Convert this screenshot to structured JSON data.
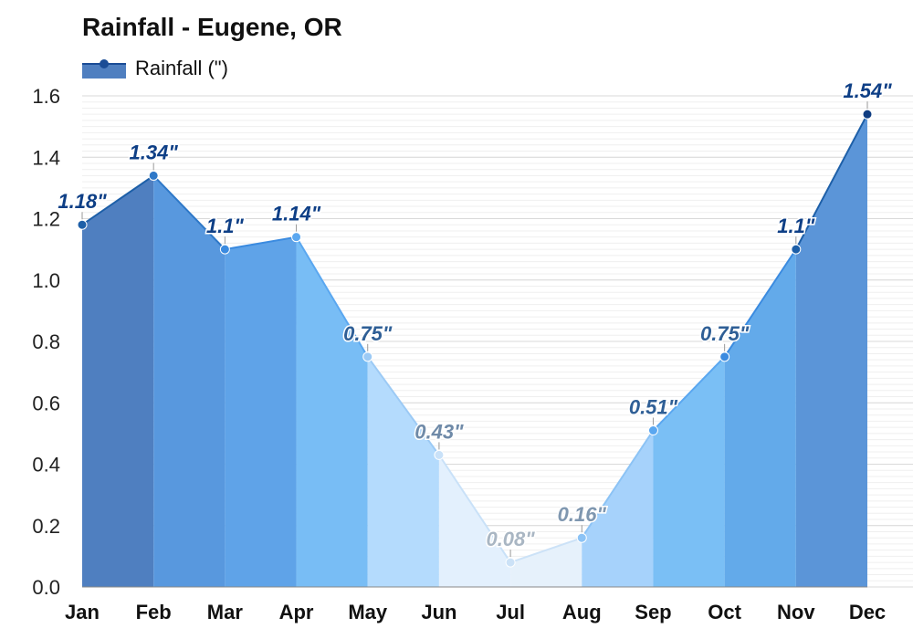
{
  "chart_data": {
    "type": "area",
    "title": "Rainfall - Eugene, OR",
    "legend": [
      "Rainfall (\")"
    ],
    "legend_position": "top-left",
    "categories": [
      "Jan",
      "Feb",
      "Mar",
      "Apr",
      "May",
      "Jun",
      "Jul",
      "Aug",
      "Sep",
      "Oct",
      "Nov",
      "Dec"
    ],
    "series": [
      {
        "name": "Rainfall (\")",
        "values": [
          1.18,
          1.34,
          1.1,
          1.14,
          0.75,
          0.43,
          0.08,
          0.16,
          0.51,
          0.75,
          1.1,
          1.54
        ]
      }
    ],
    "data_labels": [
      "1.18\"",
      "1.34\"",
      "1.1\"",
      "1.14\"",
      "0.75\"",
      "0.43\"",
      "0.08\"",
      "0.16\"",
      "0.51\"",
      "0.75\"",
      "1.1\"",
      "1.54\""
    ],
    "y_ticks": [
      "0.0",
      "0.2",
      "0.4",
      "0.6",
      "0.8",
      "1.0",
      "1.2",
      "1.4",
      "1.6"
    ],
    "ylim": [
      0,
      1.6
    ],
    "grid": true,
    "segment_colors": [
      "#4f7fc0",
      "#5898de",
      "#5fa3e8",
      "#78bdf5",
      "#b4dbfd",
      "#e3f0fd",
      "#e6f1fb",
      "#a6d2fb",
      "#7abff5",
      "#63aaea",
      "#5b95d8",
      "#4f7fc0"
    ],
    "line_colors": [
      "#1d5fa8",
      "#2e78c8",
      "#3b8be0",
      "#5aa7f0",
      "#9ccaf5",
      "#c9e1f8",
      "#cce2f7",
      "#8cc3f5",
      "#5aa7f0",
      "#3b8be0",
      "#1d5fa8",
      "#0f3d82"
    ],
    "label_colors": [
      "#0e3f86",
      "#0e3f86",
      "#0e3f86",
      "#0e3f86",
      "#2f5f96",
      "#6f8aa8",
      "#a9b6c3",
      "#7f97b0",
      "#2f5f96",
      "#2f5f96",
      "#0e3f86",
      "#0e3f86"
    ]
  }
}
